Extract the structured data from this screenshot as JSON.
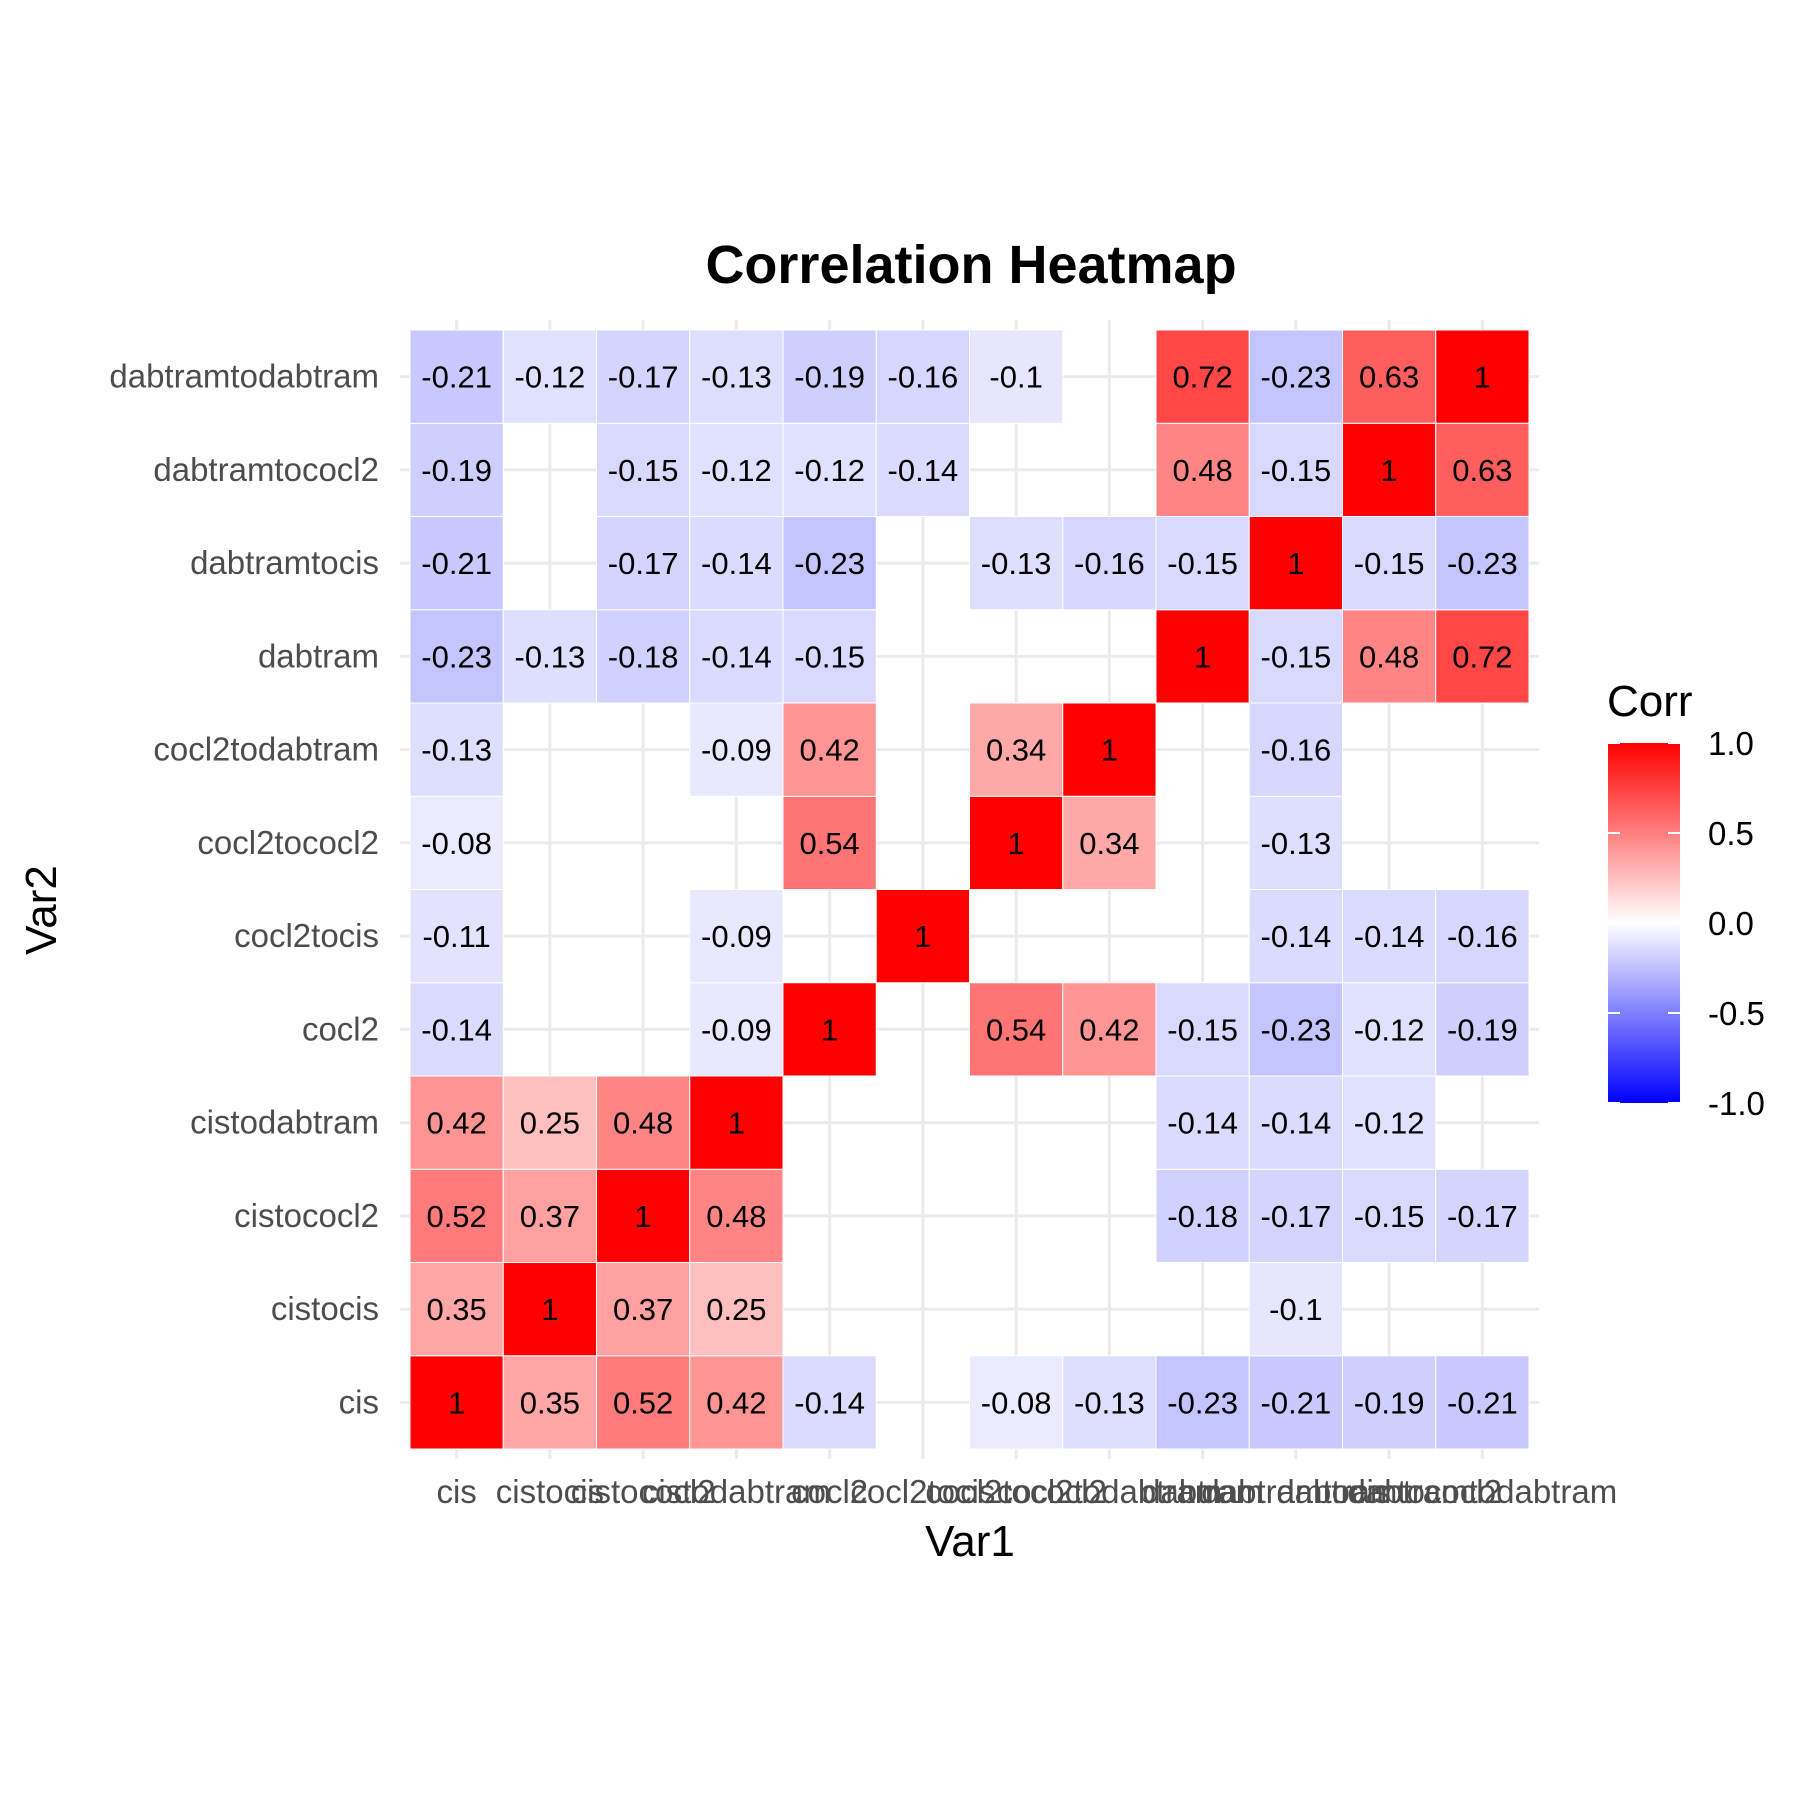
{
  "chart_data": {
    "type": "heatmap",
    "title": "Correlation Heatmap",
    "xlabel": "Var1",
    "ylabel": "Var2",
    "legend_title": "Corr",
    "legend_position": "right",
    "color_scale": {
      "low": "#0000ff",
      "mid": "#ffffff",
      "high": "#ff0000",
      "limits": [
        -1,
        1
      ]
    },
    "legend_ticks": [
      "1.0",
      "0.5",
      "0.0",
      "-0.5",
      "-1.0"
    ],
    "legend_tick_values": [
      1.0,
      0.5,
      0.0,
      -0.5,
      -1.0
    ],
    "grid": true,
    "x_categories": [
      "cis",
      "cistocis",
      "cistococl2",
      "cistodabtram",
      "cocl2",
      "cocl2tocis",
      "cocl2tococl2",
      "cocl2todabtram",
      "dabtram",
      "dabtramtocis",
      "dabtramtococl2",
      "dabtramtodabtram"
    ],
    "y_categories": [
      "cis",
      "cistocis",
      "cistococl2",
      "cistodabtram",
      "cocl2",
      "cocl2tocis",
      "cocl2tococl2",
      "cocl2todabtram",
      "dabtram",
      "dabtramtocis",
      "dabtramtococl2",
      "dabtramtodabtram"
    ],
    "values": [
      [
        1,
        0.35,
        0.52,
        0.42,
        -0.14,
        null,
        -0.08,
        -0.13,
        -0.23,
        -0.21,
        -0.19,
        -0.21
      ],
      [
        0.35,
        1,
        0.37,
        0.25,
        null,
        null,
        null,
        null,
        null,
        -0.1,
        null,
        null
      ],
      [
        0.52,
        0.37,
        1,
        0.48,
        null,
        null,
        null,
        null,
        -0.18,
        -0.17,
        -0.15,
        -0.17
      ],
      [
        0.42,
        0.25,
        0.48,
        1,
        null,
        null,
        null,
        null,
        -0.14,
        -0.14,
        -0.12,
        null
      ],
      [
        -0.14,
        null,
        null,
        -0.09,
        1,
        null,
        0.54,
        0.42,
        -0.15,
        -0.23,
        -0.12,
        -0.19
      ],
      [
        -0.11,
        null,
        null,
        -0.09,
        null,
        1,
        null,
        null,
        null,
        -0.14,
        -0.14,
        -0.16
      ],
      [
        -0.08,
        null,
        null,
        null,
        0.54,
        null,
        1,
        0.34,
        null,
        -0.13,
        null,
        null
      ],
      [
        -0.13,
        null,
        null,
        -0.09,
        0.42,
        null,
        0.34,
        1,
        null,
        -0.16,
        null,
        null
      ],
      [
        -0.23,
        -0.13,
        -0.18,
        -0.14,
        -0.15,
        null,
        null,
        null,
        1,
        -0.15,
        0.48,
        0.72
      ],
      [
        -0.21,
        null,
        -0.17,
        -0.14,
        -0.23,
        null,
        -0.13,
        -0.16,
        -0.15,
        1,
        -0.15,
        -0.23
      ],
      [
        -0.19,
        null,
        -0.15,
        -0.12,
        -0.12,
        -0.14,
        null,
        null,
        0.48,
        -0.15,
        1,
        0.63
      ],
      [
        -0.21,
        -0.12,
        -0.17,
        -0.13,
        -0.19,
        -0.16,
        -0.1,
        null,
        0.72,
        -0.23,
        0.63,
        1
      ]
    ]
  }
}
